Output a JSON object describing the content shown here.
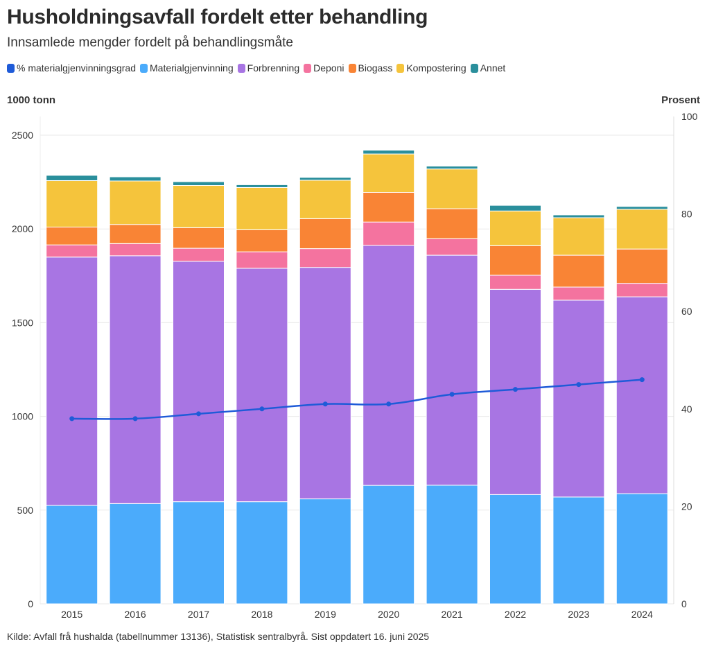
{
  "chart_data": {
    "type": "bar",
    "stacked": true,
    "title": "Husholdningsavfall fordelt etter behandling",
    "subtitle": "Innsamlede mengder fordelt på behandlingsmåte",
    "y_label_left": "1000 tonn",
    "y_label_right": "Prosent",
    "categories": [
      "2015",
      "2016",
      "2017",
      "2018",
      "2019",
      "2020",
      "2021",
      "2022",
      "2023",
      "2024"
    ],
    "ylim": [
      0,
      2600
    ],
    "yticks": [
      "0",
      "500",
      "1000",
      "1500",
      "2000",
      "2500"
    ],
    "ytick_values": [
      0,
      500,
      1000,
      1500,
      2000,
      2500
    ],
    "y2lim": [
      0,
      100
    ],
    "y2ticks": [
      "0",
      "20",
      "40",
      "60",
      "80",
      "100"
    ],
    "y2tick_values": [
      0,
      20,
      40,
      60,
      80,
      100
    ],
    "series": [
      {
        "name": "Materialgjenvinning",
        "color": "#4babfb",
        "values": [
          525,
          535,
          545,
          545,
          560,
          632,
          633,
          583,
          570,
          588
        ]
      },
      {
        "name": "Forbrenning",
        "color": "#a875e3",
        "values": [
          1325,
          1322,
          1282,
          1245,
          1235,
          1280,
          1227,
          1095,
          1050,
          1050
        ]
      },
      {
        "name": "Deponi",
        "color": "#f4739f",
        "values": [
          65,
          65,
          70,
          88,
          100,
          125,
          88,
          75,
          70,
          72
        ]
      },
      {
        "name": "Biogass",
        "color": "#f98435",
        "values": [
          95,
          102,
          110,
          118,
          160,
          158,
          160,
          158,
          170,
          183
        ]
      },
      {
        "name": "Kompostering",
        "color": "#f5c43c",
        "values": [
          248,
          232,
          225,
          225,
          205,
          205,
          212,
          185,
          200,
          212
        ]
      },
      {
        "name": "Annet",
        "color": "#2a8f9c",
        "values": [
          28,
          22,
          20,
          15,
          15,
          20,
          15,
          30,
          15,
          15
        ]
      }
    ],
    "line_series": {
      "name": "% materialgjenvinningsgrad",
      "color": "#1f5bd8",
      "axis": "right",
      "values": [
        38,
        38,
        39,
        40,
        41,
        41,
        43,
        44,
        45,
        46
      ]
    }
  },
  "legend": [
    {
      "label": "% materialgjenvinningsgrad",
      "color": "#1f5bd8"
    },
    {
      "label": "Materialgjenvinning",
      "color": "#4babfb"
    },
    {
      "label": "Forbrenning",
      "color": "#a875e3"
    },
    {
      "label": "Deponi",
      "color": "#f4739f"
    },
    {
      "label": "Biogass",
      "color": "#f98435"
    },
    {
      "label": "Kompostering",
      "color": "#f5c43c"
    },
    {
      "label": "Annet",
      "color": "#2a8f9c"
    }
  ],
  "footer": "Kilde: Avfall frå hushalda (tabellnummer 13136), Statistisk sentralbyrå. Sist oppdatert 16. juni 2025"
}
